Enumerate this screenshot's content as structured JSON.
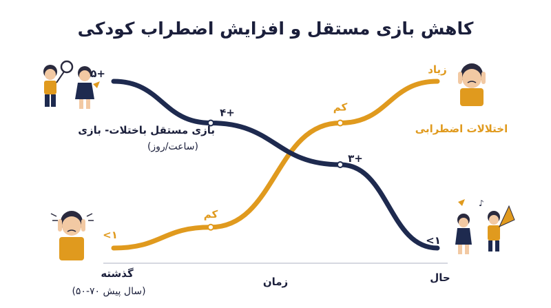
{
  "chart_data": {
    "type": "line",
    "title": "کاهش بازی مستقل و افزایش اضطراب کودکی",
    "xlabel": "زمان",
    "x_tick_labels": [
      "گذشته",
      "(۵۰-۷۰ سال پیش)",
      "حال"
    ],
    "grid": false,
    "legend": "none",
    "series": [
      {
        "name": "بازی مستقل باختلات- بازی",
        "unit_label": "(ساعت/روز)",
        "color": "#1e2a4f",
        "points": [
          {
            "t": 0.0,
            "v": 5,
            "label": "۵+"
          },
          {
            "t": 0.3,
            "v": 4,
            "label": "۴+"
          },
          {
            "t": 0.7,
            "v": 3,
            "label": "۳+"
          },
          {
            "t": 1.0,
            "v": 1,
            "label": "<۱"
          }
        ]
      },
      {
        "name": "اختلالات اضطرابی",
        "color": "#e09a1e",
        "points": [
          {
            "t": 0.0,
            "v": 1,
            "label": "<۱"
          },
          {
            "t": 0.3,
            "v": 1.5,
            "label": "کم"
          },
          {
            "t": 0.7,
            "v": 4,
            "label": "کم"
          },
          {
            "t": 1.0,
            "v": 5,
            "label": "زیاد"
          }
        ]
      }
    ]
  },
  "colors": {
    "navy": "#1e2a4f",
    "orange": "#e09a1e",
    "axis": "#c9ccd6"
  },
  "icons": [
    "kids-playing-icon",
    "worried-child-icon",
    "anxious-child-icon",
    "kids-playing-kite-icon"
  ]
}
